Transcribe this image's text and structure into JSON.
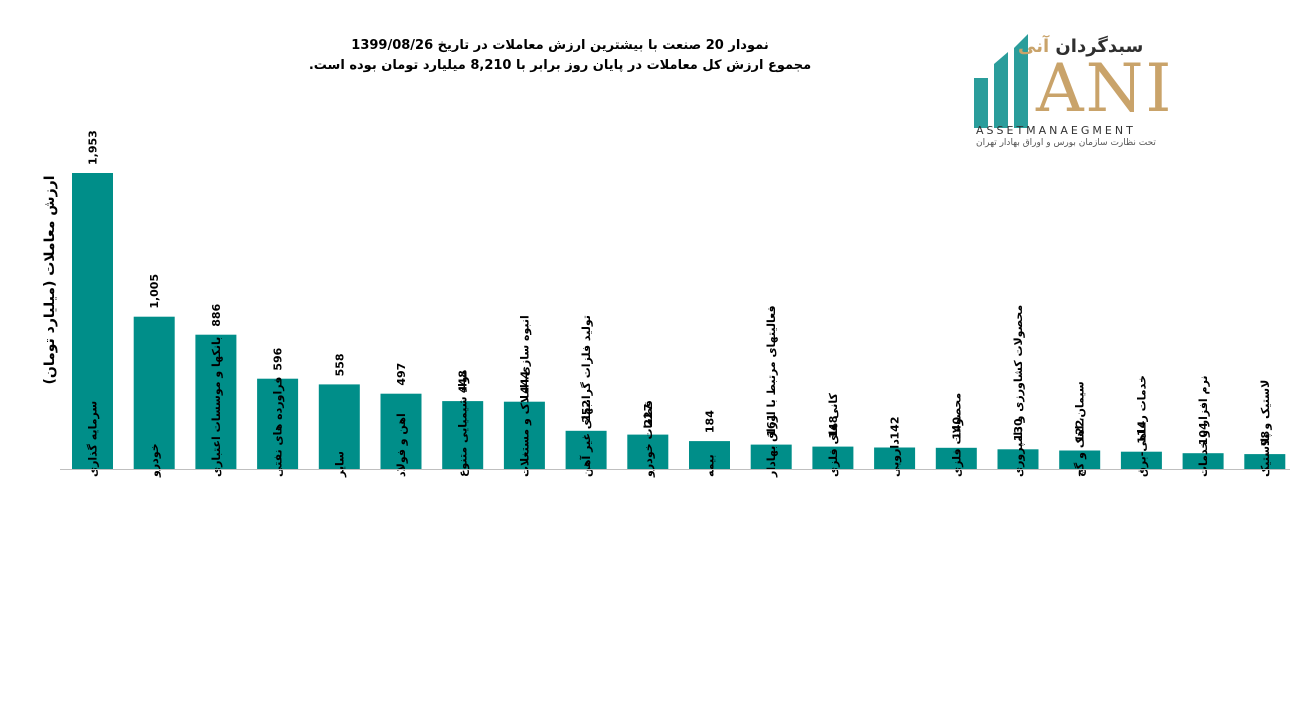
{
  "header": {
    "title_line1": "نمودار  20 صنعت با بیشترین ارزش معاملات در تاریخ 1399/08/26",
    "title_line2": "مجموع ارزش  کل معاملات در پایان روز برابر با 8,210 میلیارد تومان بوده است."
  },
  "logo": {
    "brand_fa_main": "سبدگردان",
    "brand_fa_accent": "آنی",
    "brand_latin": "ANI",
    "subtitle": "ASSETMANAEGMENT",
    "tagline": "تحت نظارت سازمان بورس و اوراق بهادار تهران",
    "colors": {
      "teal": "#2a9d9b",
      "gold": "#c9a36a"
    }
  },
  "chart_data": {
    "type": "bar",
    "title": "",
    "xlabel": "",
    "ylabel": "ارزش معاملات (میلیارد تومان)",
    "ylim": [
      0,
      2000
    ],
    "grid": false,
    "bar_color": "#008e89",
    "categories": [
      "سرمایه گذاری",
      "خودرو",
      "بانکها و موسسات اعتباری",
      "فراورده های نفتی",
      "سایر",
      "اهن و فولاد",
      "مواد شیمیایی متنوع",
      "انبوه سازی، املاک و مستغلات",
      "تولید فلزات گرانبهای غیر آهن",
      "قطعات خودرو",
      "بیمه",
      "فعالیتهای مرتبط با اوراق بهادار",
      "کانی های فلزی",
      "دارویی",
      "محصولات فلزی",
      "محصولات کشاورزی و دامپروری",
      "سیمان، اهک و گچ",
      "خدمات رفاهی-برق",
      "نرم افزار و خدمات",
      "لاستیک و پلاستیک"
    ],
    "values": [
      1953,
      1005,
      886,
      596,
      558,
      497,
      448,
      444,
      252,
      227,
      184,
      161,
      148,
      142,
      140,
      130,
      122,
      114,
      104,
      98
    ],
    "value_labels": [
      "1,953",
      "1,005",
      "886",
      "596",
      "558",
      "497",
      "448",
      "444",
      "252",
      "227",
      "184",
      "161",
      "148",
      "142",
      "140",
      "130",
      "122",
      "114",
      "104",
      "98"
    ]
  }
}
